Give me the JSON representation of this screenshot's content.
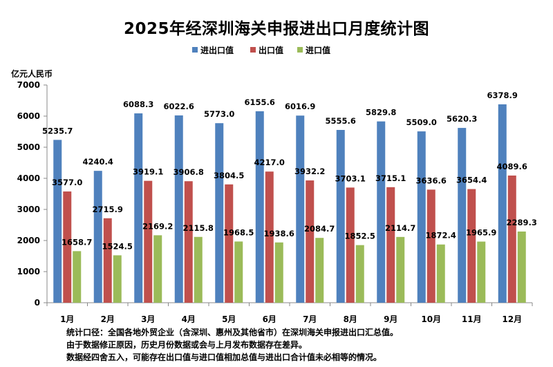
{
  "chart_data": {
    "type": "bar",
    "title": "2025年经深圳海关申报进出口月度统计图",
    "ylabel": "亿元人民币",
    "ylim": [
      0,
      7000
    ],
    "yticks": [
      0,
      1000,
      2000,
      3000,
      4000,
      5000,
      6000,
      7000
    ],
    "grid": false,
    "legend": "top",
    "categories": [
      "1月",
      "2月",
      "3月",
      "4月",
      "5月",
      "6月",
      "7月",
      "8月",
      "9月",
      "10月",
      "11月",
      "12月"
    ],
    "series": [
      {
        "name": "进出口值",
        "color": "#4f81bd",
        "values": [
          5235.7,
          4240.4,
          6088.3,
          6022.6,
          5773.0,
          6155.6,
          6016.9,
          5555.6,
          5829.8,
          5509.0,
          5620.3,
          6378.9
        ]
      },
      {
        "name": "出口值",
        "color": "#c0504d",
        "values": [
          3577.0,
          2715.9,
          3919.1,
          3906.8,
          3804.5,
          4217.0,
          3932.2,
          3703.1,
          3715.1,
          3636.6,
          3654.4,
          4089.6
        ]
      },
      {
        "name": "进口值",
        "color": "#9bbb59",
        "values": [
          1658.7,
          1524.5,
          2169.2,
          2115.8,
          1968.5,
          1938.6,
          2084.7,
          1852.5,
          2114.7,
          1872.4,
          1965.9,
          2289.3
        ]
      }
    ]
  },
  "notes": [
    "统计口径：全国各地外贸企业（含深圳、惠州及其他省市）在深圳海关申报进出口汇总值。",
    "由于数据修正原因，历史月份数据或会与上月发布数据存在差异。",
    "数据经四舍五入，可能存在出口值与进口值相加总值与进出口合计值未必相等的情况。"
  ]
}
